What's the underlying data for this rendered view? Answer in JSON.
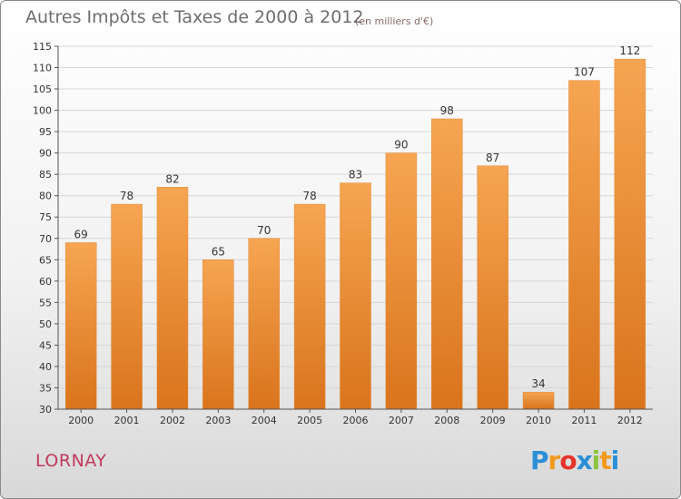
{
  "header": {
    "title": "Autres Impôts et Taxes de 2000 à 2012",
    "unit": "(en milliers d'€)"
  },
  "footer": {
    "town": "LORNAY",
    "logo_letters": [
      "P",
      "r",
      "o",
      "x",
      "i",
      "t",
      "i"
    ],
    "logo_colors": [
      "#2a8fd6",
      "#f29a1d",
      "#e6332a",
      "#2a8fd6",
      "#8cc63f",
      "#f29a1d",
      "#2a8fd6"
    ]
  },
  "chart_data": {
    "type": "bar",
    "title": "Autres Impôts et Taxes de 2000 à 2012",
    "xlabel": "",
    "ylabel": "",
    "categories": [
      "2000",
      "2001",
      "2002",
      "2003",
      "2004",
      "2005",
      "2006",
      "2007",
      "2008",
      "2009",
      "2010",
      "2011",
      "2012"
    ],
    "values": [
      69,
      78,
      82,
      65,
      70,
      78,
      83,
      90,
      98,
      87,
      34,
      107,
      112
    ],
    "ylim": [
      30,
      115
    ],
    "yticks": [
      30,
      35,
      40,
      45,
      50,
      55,
      60,
      65,
      70,
      75,
      80,
      85,
      90,
      95,
      100,
      105,
      110,
      115
    ],
    "grid": true,
    "bar_color": "#f0963c"
  }
}
